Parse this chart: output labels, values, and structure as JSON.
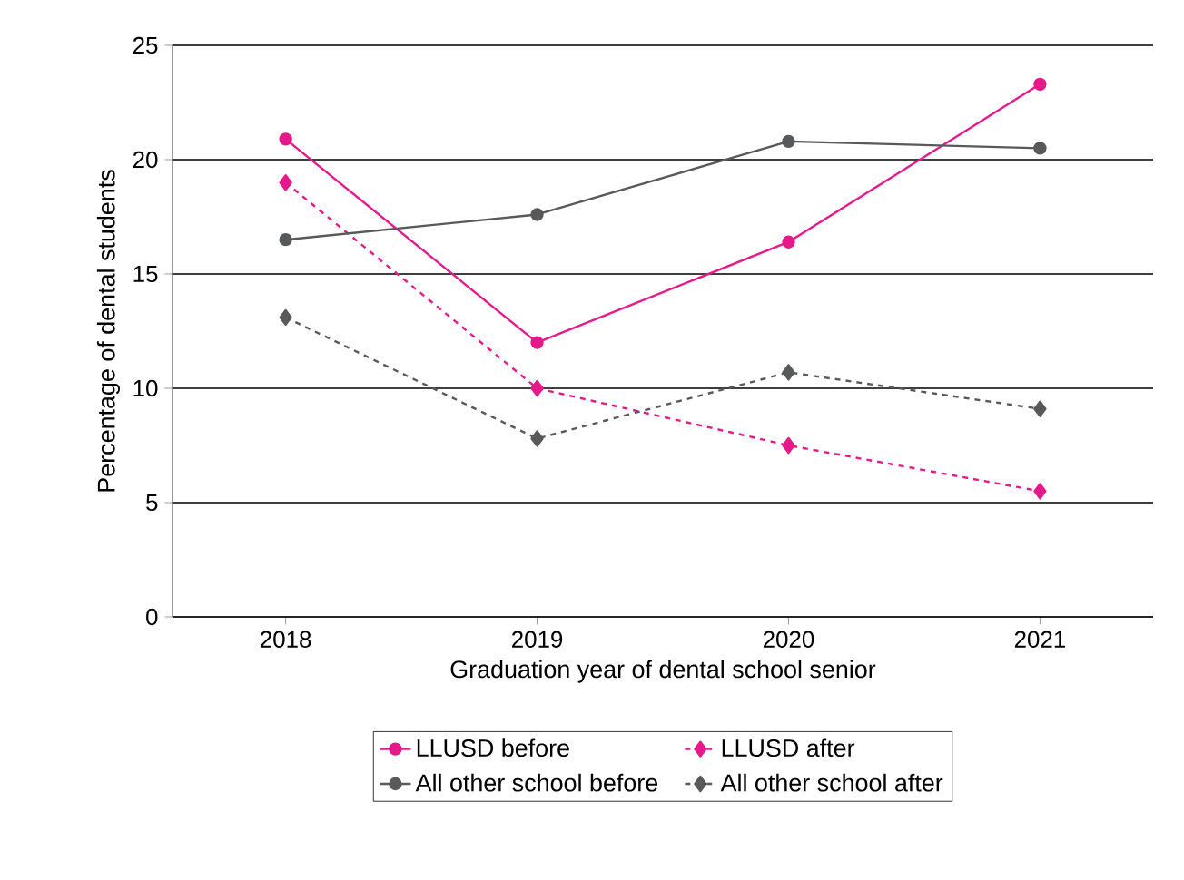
{
  "chart_data": {
    "type": "line",
    "xlabel": "Graduation year of dental school senior",
    "ylabel": "Percentage of dental students",
    "categories": [
      "2018",
      "2019",
      "2020",
      "2021"
    ],
    "series": [
      {
        "name": "LLUSD before",
        "color": "#e6198a",
        "marker": "circle",
        "line_style": "solid",
        "values": [
          20.9,
          12.0,
          16.4,
          23.3
        ]
      },
      {
        "name": "LLUSD after",
        "color": "#e6198a",
        "marker": "diamond",
        "line_style": "dashed",
        "values": [
          19.0,
          10.0,
          7.5,
          5.5
        ]
      },
      {
        "name": "All other school before",
        "color": "#58595b",
        "marker": "circle",
        "line_style": "solid",
        "values": [
          16.5,
          17.6,
          20.8,
          20.5
        ]
      },
      {
        "name": "All other school after",
        "color": "#58595b",
        "marker": "diamond",
        "line_style": "dashed",
        "values": [
          13.1,
          7.8,
          10.7,
          9.1
        ]
      }
    ],
    "ylim": [
      0,
      25
    ],
    "yticks": [
      0,
      5,
      10,
      15,
      20,
      25
    ],
    "grid": "y",
    "legend": "bottom"
  }
}
